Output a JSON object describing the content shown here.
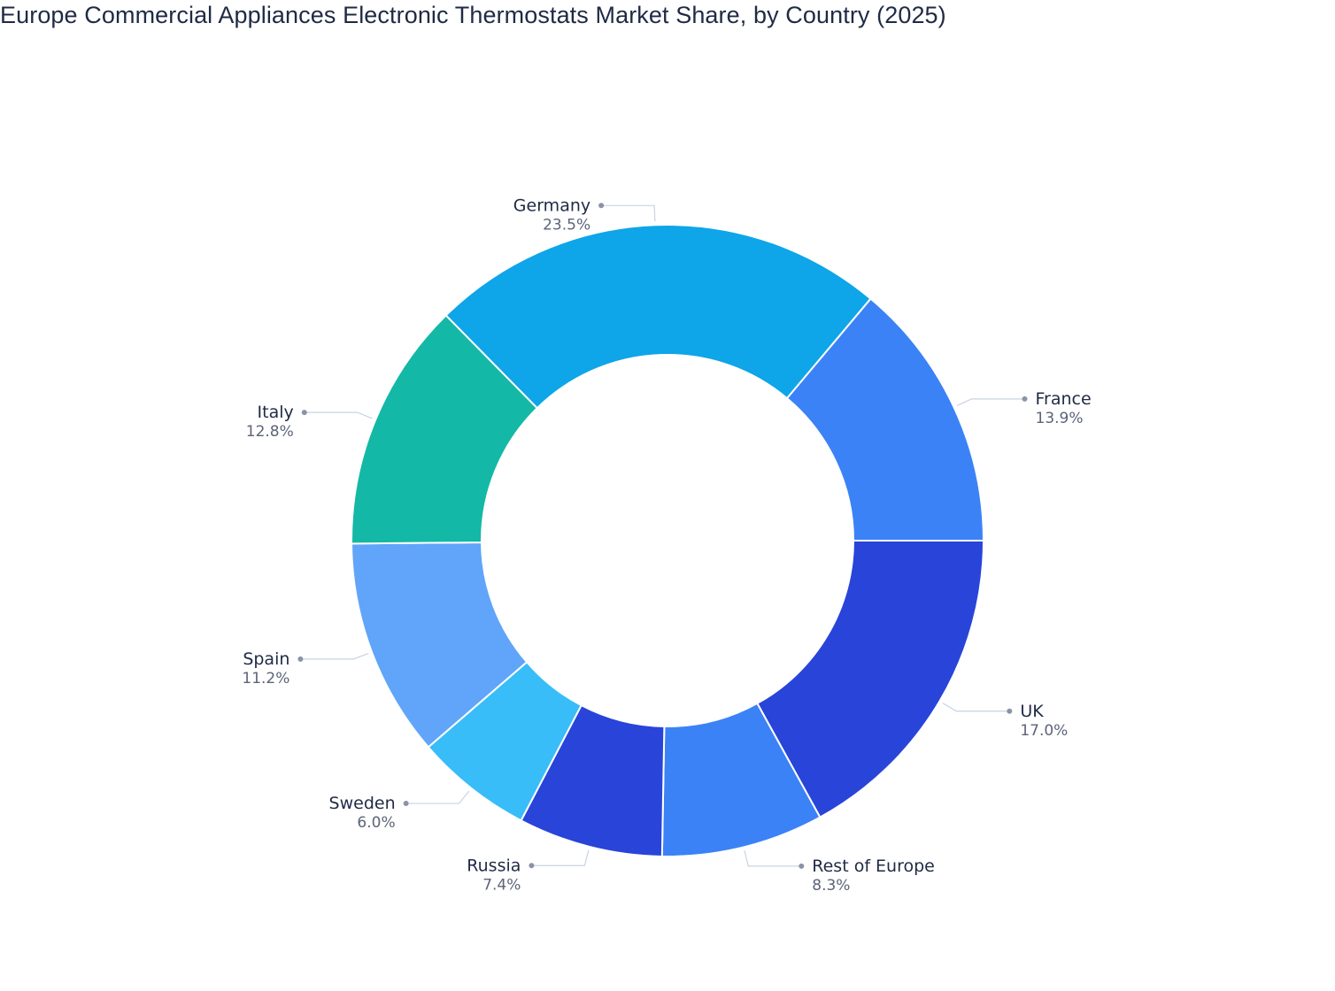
{
  "chart_data": {
    "type": "pie",
    "title": "Europe Commercial Appliances Electronic Thermostats Market Share, by Country (2025)",
    "donut": true,
    "legend": "none",
    "slices": [
      {
        "label": "UK",
        "value": 17.0,
        "display": "17.0%",
        "color": "#2844d9"
      },
      {
        "label": "Rest of Europe",
        "value": 8.3,
        "display": "8.3%",
        "color": "#3b82f6"
      },
      {
        "label": "Russia",
        "value": 7.4,
        "display": "7.4%",
        "color": "#2844d9"
      },
      {
        "label": "Sweden",
        "value": 6.0,
        "display": "6.0%",
        "color": "#38bdf8"
      },
      {
        "label": "Spain",
        "value": 11.2,
        "display": "11.2%",
        "color": "#60a5fa"
      },
      {
        "label": "Italy",
        "value": 12.8,
        "display": "12.8%",
        "color": "#14b8a6"
      },
      {
        "label": "Germany",
        "value": 23.5,
        "display": "23.5%",
        "color": "#0ea5e9"
      },
      {
        "label": "France",
        "value": 13.9,
        "display": "13.9%",
        "color": "#3b82f6"
      }
    ]
  }
}
